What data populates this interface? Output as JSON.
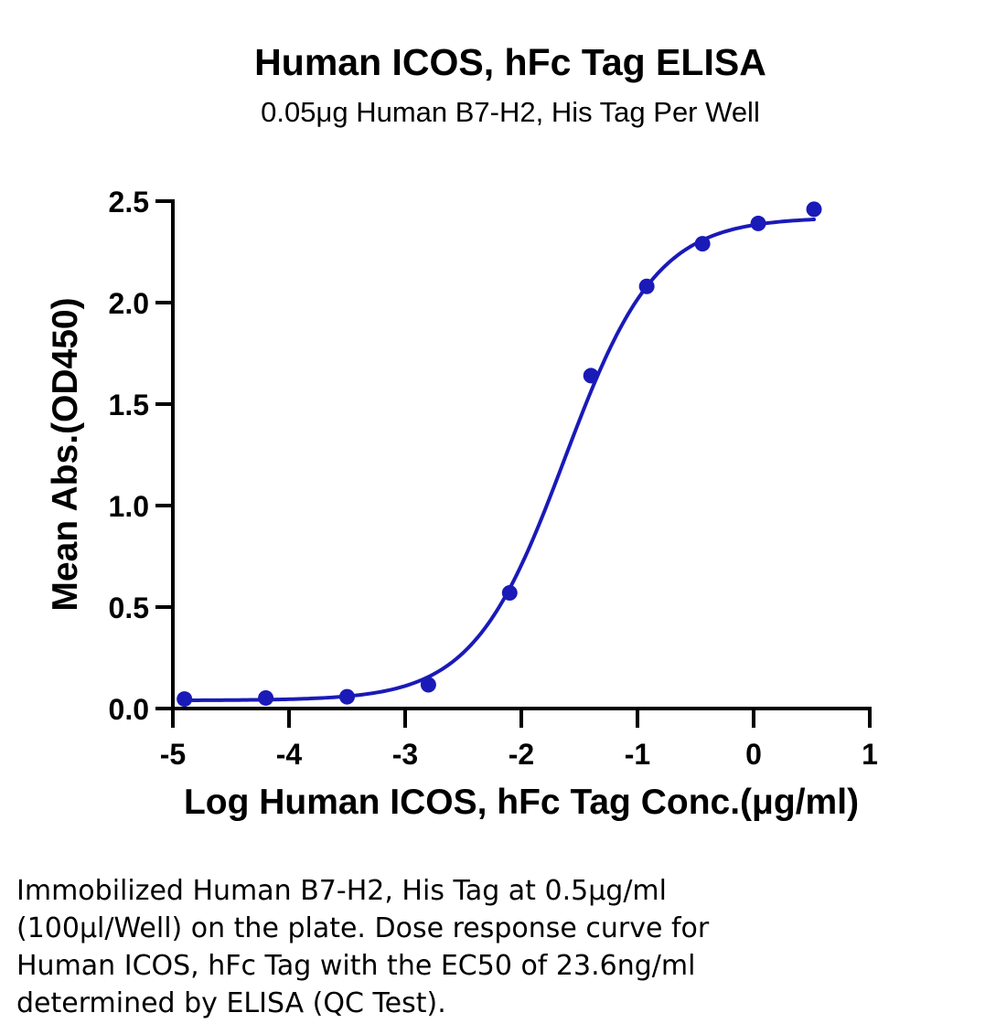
{
  "chart_data": {
    "type": "scatter",
    "title": "Human ICOS, hFc Tag ELISA",
    "subtitle": "0.05μg Human B7-H2, His Tag Per Well",
    "xlabel": "Log Human ICOS, hFc Tag Conc.(μg/ml)",
    "ylabel": "Mean Abs.(OD450)",
    "xlim": [
      -5,
      1
    ],
    "ylim": [
      0,
      2.5
    ],
    "x_ticks": [
      -5,
      -4,
      -3,
      -2,
      -1,
      0,
      1
    ],
    "x_tick_labels": [
      "-5",
      "-4",
      "-3",
      "-2",
      "-1",
      "0",
      "1"
    ],
    "y_ticks": [
      0,
      0.5,
      1,
      1.5,
      2,
      2.5
    ],
    "y_tick_labels": [
      "0.0",
      "0.5",
      "1.0",
      "1.5",
      "2.0",
      "2.5"
    ],
    "grid": false,
    "legend": false,
    "series": [
      {
        "color": "#1a1ab8",
        "marker": "circle",
        "points": [
          {
            "x": -4.9,
            "y": 0.047
          },
          {
            "x": -4.2,
            "y": 0.052
          },
          {
            "x": -3.5,
            "y": 0.058
          },
          {
            "x": -2.8,
            "y": 0.117
          },
          {
            "x": -2.1,
            "y": 0.57
          },
          {
            "x": -1.4,
            "y": 1.64
          },
          {
            "x": -0.92,
            "y": 2.08
          },
          {
            "x": -0.44,
            "y": 2.29
          },
          {
            "x": 0.04,
            "y": 2.39
          },
          {
            "x": 0.52,
            "y": 2.46
          }
        ],
        "fit": {
          "model": "four-parameter logistic",
          "bottom": 0.04,
          "top": 2.42,
          "log_ec50": -1.627,
          "hill_slope": 1.1,
          "x_range": [
            -4.9,
            0.52
          ]
        }
      }
    ]
  },
  "caption": [
    "Immobilized Human B7-H2, His Tag at 0.5μg/ml",
    "(100μl/Well) on the plate. Dose response curve for",
    "Human ICOS, hFc Tag with the EC50 of 23.6ng/ml",
    "determined by ELISA (QC Test)."
  ]
}
